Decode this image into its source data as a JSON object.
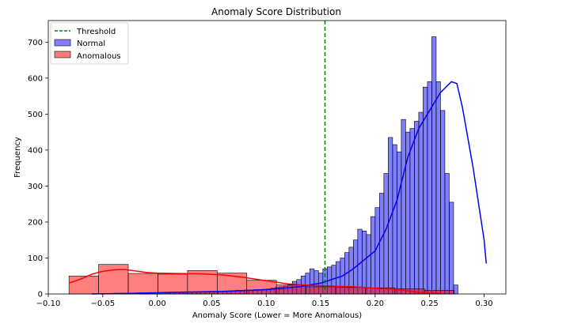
{
  "chart_data": {
    "type": "histogram",
    "title": "Anomaly Score Distribution",
    "xlabel": "Anomaly Score (Lower = More Anomalous)",
    "ylabel": "Frequency",
    "xlim": [
      -0.1,
      0.32
    ],
    "ylim": [
      0,
      760
    ],
    "xticks": [
      -0.1,
      -0.05,
      0.0,
      0.05,
      0.1,
      0.15,
      0.2,
      0.25,
      0.3
    ],
    "xtick_labels": [
      "−0.10",
      "−0.05",
      "0.00",
      "0.05",
      "0.10",
      "0.15",
      "0.20",
      "0.25",
      "0.30"
    ],
    "yticks": [
      0,
      100,
      200,
      300,
      400,
      500,
      600,
      700
    ],
    "ytick_labels": [
      "0",
      "100",
      "200",
      "300",
      "400",
      "500",
      "600",
      "700"
    ],
    "threshold": {
      "name": "Threshold",
      "x": 0.154,
      "color": "#008000",
      "style": "dashed"
    },
    "series": [
      {
        "name": "Normal",
        "color": "#0000ff",
        "bin_start": -0.1,
        "bin_width": 0.004,
        "values": [
          0,
          0,
          0,
          0,
          0,
          0,
          0,
          0,
          0,
          0,
          0,
          0,
          1,
          1,
          1,
          2,
          2,
          2,
          2,
          2,
          3,
          3,
          3,
          3,
          3,
          3,
          3,
          3,
          4,
          4,
          4,
          5,
          5,
          5,
          5,
          6,
          6,
          6,
          7,
          7,
          8,
          8,
          9,
          10,
          10,
          11,
          11,
          12,
          12,
          13,
          14,
          16,
          18,
          20,
          22,
          26,
          35,
          40,
          50,
          58,
          70,
          65,
          58,
          70,
          75,
          80,
          90,
          100,
          115,
          130,
          150,
          180,
          175,
          165,
          215,
          240,
          280,
          335,
          435,
          415,
          395,
          485,
          450,
          460,
          480,
          505,
          575,
          590,
          715,
          590,
          510,
          335,
          255,
          25
        ],
        "kde": [
          [
            -0.06,
            0
          ],
          [
            -0.02,
            2
          ],
          [
            0.02,
            5
          ],
          [
            0.06,
            7
          ],
          [
            0.1,
            12
          ],
          [
            0.13,
            20
          ],
          [
            0.15,
            30
          ],
          [
            0.17,
            50
          ],
          [
            0.18,
            70
          ],
          [
            0.2,
            120
          ],
          [
            0.21,
            180
          ],
          [
            0.22,
            260
          ],
          [
            0.23,
            380
          ],
          [
            0.24,
            460
          ],
          [
            0.25,
            510
          ],
          [
            0.26,
            560
          ],
          [
            0.27,
            590
          ],
          [
            0.275,
            585
          ],
          [
            0.28,
            520
          ],
          [
            0.29,
            350
          ],
          [
            0.3,
            150
          ],
          [
            0.302,
            85
          ]
        ]
      },
      {
        "name": "Anomalous",
        "color": "#ff0000",
        "bin_start": -0.081,
        "bin_width": 0.0272,
        "values": [
          50,
          82,
          57,
          55,
          65,
          58,
          38,
          25,
          20,
          18,
          17,
          14,
          10
        ],
        "kde": [
          [
            -0.081,
            30
          ],
          [
            -0.07,
            42
          ],
          [
            -0.06,
            55
          ],
          [
            -0.05,
            63
          ],
          [
            -0.04,
            67
          ],
          [
            -0.03,
            68
          ],
          [
            -0.02,
            64
          ],
          [
            -0.01,
            60
          ],
          [
            0.0,
            58
          ],
          [
            0.02,
            57
          ],
          [
            0.04,
            56
          ],
          [
            0.06,
            53
          ],
          [
            0.08,
            46
          ],
          [
            0.1,
            37
          ],
          [
            0.12,
            28
          ],
          [
            0.14,
            24
          ],
          [
            0.16,
            22
          ],
          [
            0.18,
            20
          ],
          [
            0.2,
            16
          ],
          [
            0.22,
            12
          ],
          [
            0.24,
            5
          ],
          [
            0.26,
            2
          ]
        ]
      }
    ],
    "legend": {
      "position": "top-left",
      "entries": [
        "Threshold",
        "Normal",
        "Anomalous"
      ]
    }
  }
}
